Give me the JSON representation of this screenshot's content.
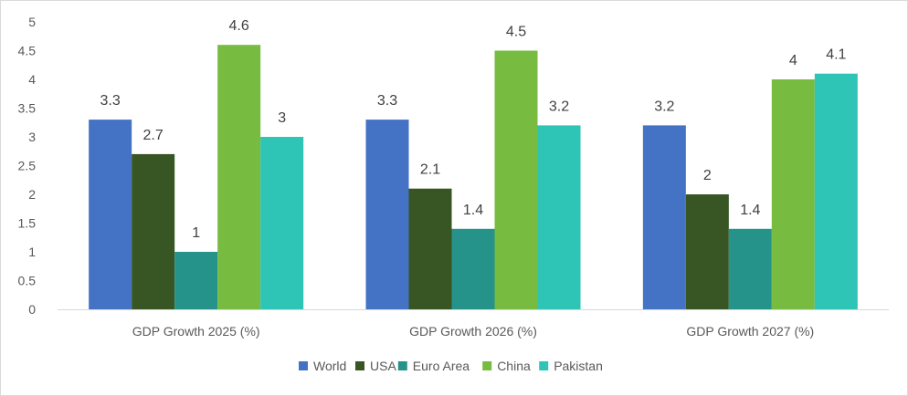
{
  "chart_data": {
    "type": "bar",
    "title": "",
    "xlabel": "",
    "ylabel": "",
    "categories": [
      "GDP Growth 2025 (%)",
      "GDP Growth 2026 (%)",
      "GDP Growth 2027 (%)"
    ],
    "series": [
      {
        "name": "World",
        "color": "#4472c4",
        "values": [
          3.3,
          3.3,
          3.2
        ]
      },
      {
        "name": "USA",
        "color": "#375623",
        "values": [
          2.7,
          2.1,
          2
        ]
      },
      {
        "name": "Euro Area",
        "color": "#26938a",
        "values": [
          1,
          1.4,
          1.4
        ]
      },
      {
        "name": "China",
        "color": "#77bb41",
        "values": [
          4.6,
          4.5,
          4
        ]
      },
      {
        "name": "Pakistan",
        "color": "#2ec4b6",
        "values": [
          3,
          3.2,
          4.1
        ]
      }
    ],
    "ylim": [
      0,
      5
    ],
    "yticks": [
      "0",
      "0.5",
      "1",
      "1.5",
      "2",
      "2.5",
      "3",
      "3.5",
      "4",
      "4.5",
      "5"
    ],
    "data_labels": true,
    "grid": false,
    "legend_position": "bottom"
  }
}
